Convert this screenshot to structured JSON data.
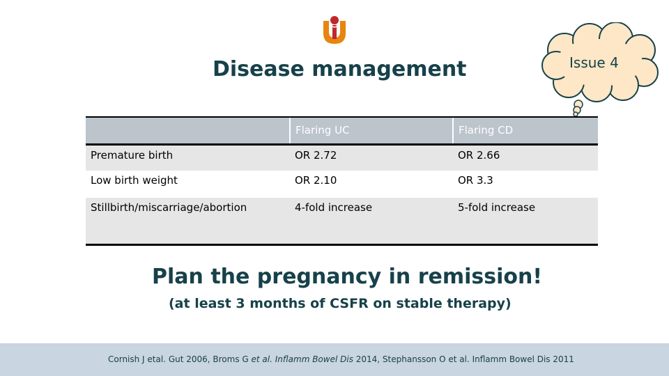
{
  "slide": {
    "title": "Disease management",
    "badge": "Issue 4",
    "colors": {
      "title_teal": "#17414a",
      "logo_orange": "#e8840f",
      "logo_red": "#c0272d",
      "cloud_fill": "#fde7c6"
    }
  },
  "table": {
    "headers": [
      "",
      "Flaring UC",
      "Flaring CD"
    ],
    "rows": [
      [
        "Premature birth",
        "OR 2.72",
        "OR 2.66"
      ],
      [
        "Low birth weight",
        "OR 2.10",
        "OR 3.3"
      ],
      [
        "Stillbirth/miscarriage/abortion",
        "4-fold increase",
        "5-fold increase"
      ]
    ]
  },
  "message": {
    "headline": "Plan the pregnancy in remission!",
    "subline": "(at least 3 months of CSFR on stable therapy)"
  },
  "references": {
    "part1": "Cornish J etal. Gut 2006, Broms G ",
    "part2": "et al. Inflamm Bowel Dis",
    "part3": " 2014, Stephansson O et al. Inflamm Bowel Dis 2011"
  }
}
